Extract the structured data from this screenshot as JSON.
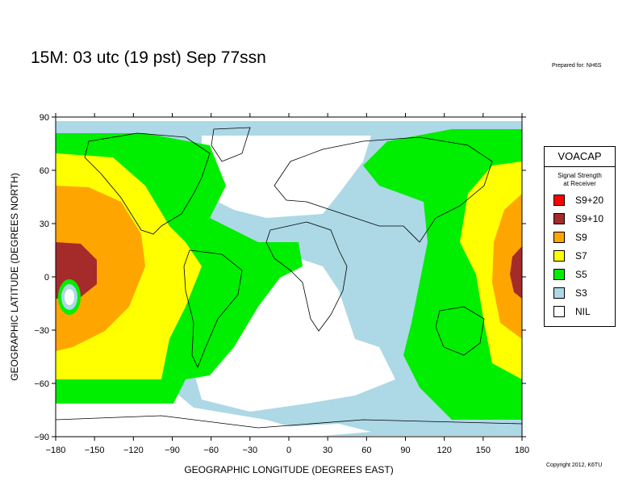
{
  "title": "15M:  03 utc (19 pst) Sep 77ssn",
  "prepared_for": "Prepared for: NH6S",
  "copyright": "Copyright 2012, K6TU",
  "map": {
    "x_axis_label": "GEOGRAPHIC LONGITUDE (DEGREES EAST)",
    "y_axis_label": "GEOGRAPHIC LATITUDE (DEGREES NORTH)",
    "x_ticks": [
      -180,
      -150,
      -120,
      -90,
      -60,
      -30,
      0,
      30,
      60,
      90,
      120,
      150,
      180
    ],
    "y_ticks": [
      90,
      60,
      30,
      0,
      -30,
      -60,
      -90
    ],
    "x_tick_labels": [
      "−180",
      "−150",
      "−120",
      "−90",
      "−60",
      "−30",
      "0",
      "30",
      "60",
      "90",
      "120",
      "150",
      "180"
    ],
    "y_tick_labels": [
      "90",
      "60",
      "30",
      "0",
      "−30",
      "−60",
      "−90"
    ],
    "x_range": [
      -180,
      180
    ],
    "y_range": [
      -90,
      90
    ]
  },
  "legend": {
    "title": "VOACAP",
    "subtitle_line1": "Signal Strength",
    "subtitle_line2": "at Receiver",
    "items": [
      {
        "label": "S9+20",
        "color": "#ff0000"
      },
      {
        "label": "S9+10",
        "color": "#a52a2a"
      },
      {
        "label": "S9",
        "color": "#ffa500"
      },
      {
        "label": "S7",
        "color": "#ffff00"
      },
      {
        "label": "S5",
        "color": "#00ee00"
      },
      {
        "label": "S3",
        "color": "#add8e6"
      },
      {
        "label": "NIL",
        "color": "#ffffff"
      }
    ]
  },
  "colors": {
    "s9_10": "#a52a2a",
    "s9": "#ffa500",
    "s7": "#ffff00",
    "s5": "#00ee00",
    "s3": "#add8e6",
    "nil": "#ffffff"
  }
}
